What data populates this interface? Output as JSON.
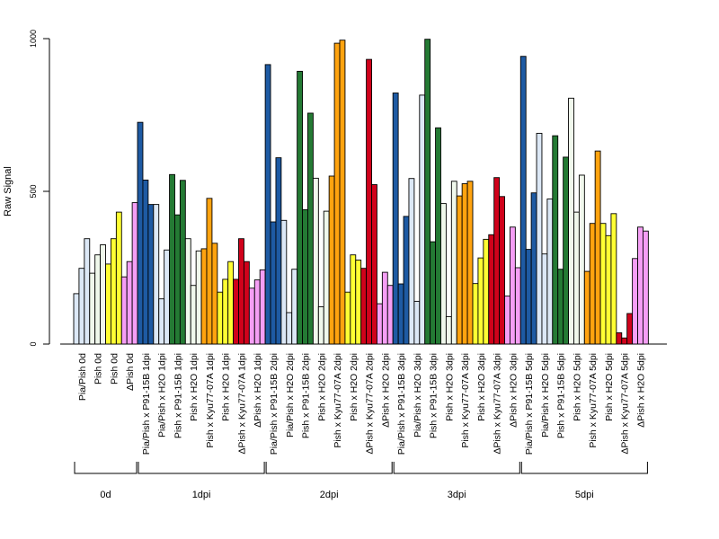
{
  "chart_data": {
    "type": "bar",
    "ylabel": "Raw Signal",
    "ylim": [
      0,
      1000
    ],
    "yticks": [
      "0",
      "500",
      "1000"
    ],
    "groups": [
      {
        "label": "0d",
        "categories": [
          {
            "label": "Pia/Pish 0d",
            "color": "#dce8f6",
            "values": [
              165,
              248,
              345
            ]
          },
          {
            "label": "Pish 0d",
            "color": "#f0f8ec",
            "values": [
              232,
              292,
              325
            ]
          },
          {
            "label": "Pish 0d",
            "color": "#ffff33",
            "values": [
              262,
              345,
              432
            ]
          },
          {
            "label": "ΔPish 0d",
            "color": "#f59ef5",
            "values": [
              220,
              270,
              463
            ]
          }
        ]
      },
      {
        "label": "1dpi",
        "categories": [
          {
            "label": "Pia/Pish x P91-15B 1dpi",
            "color": "#1e5aa3",
            "values": [
              726,
              537,
              457
            ]
          },
          {
            "label": "Pia/Pish x H2O 1dpi",
            "color": "#dce8f6",
            "values": [
              457,
              148,
              308
            ]
          },
          {
            "label": "Pish x P91-15B 1dpi",
            "color": "#247a34",
            "values": [
              555,
              423,
              536
            ]
          },
          {
            "label": "Pish x H2O 1dpi",
            "color": "#f0f8ec",
            "values": [
              345,
              192,
              305
            ]
          },
          {
            "label": "Pish x Kyu77-07A 1dpi",
            "color": "#ffa30f",
            "values": [
              312,
              477,
              330
            ]
          },
          {
            "label": "Pish x H2O 1dpi",
            "color": "#ffff33",
            "values": [
              170,
              212,
              270
            ]
          },
          {
            "label": "ΔPish x Kyu77-07A 1dpi",
            "color": "#d0021b",
            "values": [
              212,
              345,
              270
            ]
          },
          {
            "label": "ΔPish x H2O 1dpi",
            "color": "#f59ef5",
            "values": [
              183,
              210,
              243
            ]
          }
        ]
      },
      {
        "label": "2dpi",
        "categories": [
          {
            "label": "Pia/Pish x P91-15B 2dpi",
            "color": "#1e5aa3",
            "values": [
              915,
              400,
              610
            ]
          },
          {
            "label": "Pia/Pish x H2O 2dpi",
            "color": "#dce8f6",
            "values": [
              405,
              103,
              245
            ]
          },
          {
            "label": "Pish x P91-15B 2dpi",
            "color": "#247a34",
            "values": [
              893,
              440,
              756
            ]
          },
          {
            "label": "Pish x H2O 2dpi",
            "color": "#f0f8ec",
            "values": [
              543,
              122,
              435
            ]
          },
          {
            "label": "Pish x Kyu77-07A 2dpi",
            "color": "#ffa30f",
            "values": [
              550,
              985,
              995
            ]
          },
          {
            "label": "Pish x H2O 2dpi",
            "color": "#ffff33",
            "values": [
              170,
              292,
              275
            ]
          },
          {
            "label": "ΔPish x Kyu77-07A 2dpi",
            "color": "#d0021b",
            "values": [
              248,
              932,
              522
            ]
          },
          {
            "label": "ΔPish x H2O 2dpi",
            "color": "#f59ef5",
            "values": [
              132,
              235,
              192
            ]
          }
        ]
      },
      {
        "label": "3dpi",
        "categories": [
          {
            "label": "Pia/Pish x P91-15B 3dpi",
            "color": "#1e5aa3",
            "values": [
              822,
              197,
              418
            ]
          },
          {
            "label": "Pia/Pish x H2O 3dpi",
            "color": "#dce8f6",
            "values": [
              542,
              140,
              815
            ]
          },
          {
            "label": "Pish x P91-15B 3dpi",
            "color": "#247a34",
            "values": [
              998,
              335,
              708
            ]
          },
          {
            "label": "Pish x H2O 3dpi",
            "color": "#f0f8ec",
            "values": [
              460,
              90,
              533
            ]
          },
          {
            "label": "Pish x Kyu77-07A 3dpi",
            "color": "#ffa30f",
            "values": [
              485,
              525,
              533
            ]
          },
          {
            "label": "Pish x H2O 3dpi",
            "color": "#ffff33",
            "values": [
              198,
              282,
              343
            ]
          },
          {
            "label": "ΔPish x Kyu77-07A 3dpi",
            "color": "#d0021b",
            "values": [
              358,
              545,
              483
            ]
          },
          {
            "label": "ΔPish x H2O 3dpi",
            "color": "#f59ef5",
            "values": [
              157,
              383,
              250
            ]
          }
        ]
      },
      {
        "label": "5dpi",
        "categories": [
          {
            "label": "Pia/Pish x P91-15B 5dpi",
            "color": "#1e5aa3",
            "values": [
              942,
              310,
              495
            ]
          },
          {
            "label": "Pia/Pish x H2O 5dpi",
            "color": "#dce8f6",
            "values": [
              690,
              295,
              475
            ]
          },
          {
            "label": "Pish x P91-15B 5dpi",
            "color": "#247a34",
            "values": [
              682,
              245,
              612
            ]
          },
          {
            "label": "Pish x H2O 5dpi",
            "color": "#f0f8ec",
            "values": [
              805,
              432,
              553
            ]
          },
          {
            "label": "Pish x Kyu77-07A 5dpi",
            "color": "#ffa30f",
            "values": [
              238,
              395,
              632
            ]
          },
          {
            "label": "Pish x H2O 5dpi",
            "color": "#ffff33",
            "values": [
              395,
              355,
              427
            ]
          },
          {
            "label": "ΔPish x Kyu77-07A 5dpi",
            "color": "#d0021b",
            "values": [
              37,
              20,
              100
            ]
          },
          {
            "label": "ΔPish x H2O 5dpi",
            "color": "#f59ef5",
            "values": [
              280,
              383,
              370
            ]
          }
        ]
      }
    ]
  }
}
